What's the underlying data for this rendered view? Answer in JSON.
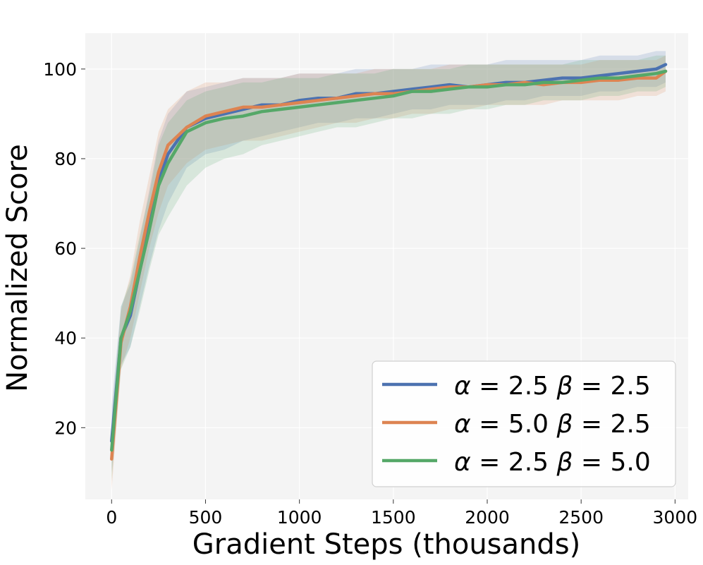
{
  "chart_data": {
    "type": "line",
    "title": "",
    "xlabel": "Gradient Steps (thousands)",
    "ylabel": "Normalized Score",
    "xlim": [
      -140,
      3070
    ],
    "ylim": [
      4,
      108
    ],
    "x_ticks": [
      0,
      500,
      1000,
      1500,
      2000,
      2500,
      3000
    ],
    "y_ticks": [
      20,
      40,
      60,
      80,
      100
    ],
    "grid": true,
    "background": "#f4f4f4",
    "legend_position": "lower-right",
    "series": [
      {
        "name": "α = 2.5   β = 2.5",
        "legend_parts": [
          "α",
          "= 2.5",
          "β",
          "= 2.5"
        ],
        "color": "#4c72b0",
        "x": [
          0,
          50,
          100,
          150,
          200,
          250,
          300,
          400,
          500,
          600,
          700,
          800,
          900,
          1000,
          1100,
          1200,
          1300,
          1400,
          1500,
          1600,
          1700,
          1800,
          1900,
          2000,
          2100,
          2200,
          2300,
          2400,
          2500,
          2600,
          2700,
          2800,
          2900,
          2950
        ],
        "y": [
          17,
          40,
          45,
          55,
          65,
          75,
          81,
          87,
          89,
          90,
          91,
          92,
          92,
          93,
          93.5,
          93.5,
          94.5,
          94.5,
          95,
          95.5,
          96,
          96.5,
          96,
          96.5,
          97,
          97,
          97.5,
          98,
          98,
          98.5,
          99,
          99.5,
          100,
          101
        ],
        "band": [
          [
            10,
            25
          ],
          [
            34,
            47
          ],
          [
            38,
            52
          ],
          [
            47,
            62
          ],
          [
            56,
            73
          ],
          [
            64,
            84
          ],
          [
            70,
            90
          ],
          [
            78,
            95
          ],
          [
            81,
            96
          ],
          [
            82,
            97
          ],
          [
            84,
            98
          ],
          [
            85,
            98
          ],
          [
            86,
            98
          ],
          [
            87,
            99
          ],
          [
            88,
            99
          ],
          [
            88,
            99
          ],
          [
            89,
            100
          ],
          [
            89,
            100
          ],
          [
            90,
            100
          ],
          [
            91,
            100
          ],
          [
            91,
            101
          ],
          [
            92,
            101
          ],
          [
            92,
            101
          ],
          [
            92,
            101
          ],
          [
            93,
            102
          ],
          [
            93,
            102
          ],
          [
            94,
            102
          ],
          [
            94,
            102
          ],
          [
            94,
            102
          ],
          [
            95,
            103
          ],
          [
            95,
            103
          ],
          [
            96,
            103
          ],
          [
            96,
            104
          ],
          [
            97,
            104
          ]
        ]
      },
      {
        "name": "α = 5.0   β = 2.5",
        "legend_parts": [
          "α",
          "= 5.0",
          "β",
          "= 2.5"
        ],
        "color": "#dd8452",
        "x": [
          0,
          50,
          100,
          150,
          200,
          250,
          300,
          400,
          500,
          600,
          700,
          800,
          900,
          1000,
          1100,
          1200,
          1300,
          1400,
          1500,
          1600,
          1700,
          1800,
          1900,
          2000,
          2100,
          2200,
          2300,
          2400,
          2500,
          2600,
          2700,
          2800,
          2900,
          2950
        ],
        "y": [
          13,
          39,
          47,
          58,
          68,
          77,
          83,
          87,
          89.5,
          90.5,
          91.5,
          91.5,
          92,
          92.5,
          93,
          93.5,
          94,
          94.5,
          94.5,
          95,
          95.5,
          96,
          96,
          96.5,
          96.5,
          97,
          96.5,
          97,
          97,
          97.5,
          97.5,
          98,
          98,
          99.5
        ],
        "band": [
          [
            6,
            20
          ],
          [
            33,
            46
          ],
          [
            40,
            54
          ],
          [
            50,
            66
          ],
          [
            60,
            76
          ],
          [
            68,
            86
          ],
          [
            74,
            91
          ],
          [
            79,
            95
          ],
          [
            82,
            97
          ],
          [
            83,
            97
          ],
          [
            84,
            98
          ],
          [
            84,
            98
          ],
          [
            85,
            98
          ],
          [
            86,
            99
          ],
          [
            87,
            99
          ],
          [
            88,
            99
          ],
          [
            88,
            99
          ],
          [
            89,
            100
          ],
          [
            89,
            100
          ],
          [
            90,
            100
          ],
          [
            90,
            100
          ],
          [
            91,
            101
          ],
          [
            91,
            101
          ],
          [
            92,
            101
          ],
          [
            92,
            101
          ],
          [
            92,
            101
          ],
          [
            92,
            101
          ],
          [
            93,
            101
          ],
          [
            93,
            101
          ],
          [
            93,
            102
          ],
          [
            93,
            102
          ],
          [
            94,
            102
          ],
          [
            94,
            102
          ],
          [
            95,
            103
          ]
        ]
      },
      {
        "name": "α = 2.5   β = 5.0",
        "legend_parts": [
          "α",
          "= 2.5",
          "β",
          "= 5.0"
        ],
        "color": "#55a868",
        "x": [
          0,
          50,
          100,
          150,
          200,
          250,
          300,
          400,
          500,
          600,
          700,
          800,
          900,
          1000,
          1100,
          1200,
          1300,
          1400,
          1500,
          1600,
          1700,
          1800,
          1900,
          2000,
          2100,
          2200,
          2300,
          2400,
          2500,
          2600,
          2700,
          2800,
          2900,
          2950
        ],
        "y": [
          15,
          40,
          46,
          55,
          64,
          74,
          79,
          86,
          88,
          89,
          89.5,
          90.5,
          91,
          91.5,
          92,
          92.5,
          93,
          93.5,
          94,
          95,
          95,
          95.5,
          96,
          96,
          96.5,
          96.5,
          97,
          97,
          97.5,
          98,
          98,
          98.5,
          99,
          99.5
        ],
        "band": [
          [
            8,
            22
          ],
          [
            33,
            47
          ],
          [
            38,
            53
          ],
          [
            46,
            63
          ],
          [
            55,
            72
          ],
          [
            63,
            83
          ],
          [
            67,
            88
          ],
          [
            74,
            93
          ],
          [
            78,
            95
          ],
          [
            80,
            96
          ],
          [
            81,
            97
          ],
          [
            83,
            97
          ],
          [
            84,
            98
          ],
          [
            85,
            98
          ],
          [
            86,
            98
          ],
          [
            87,
            99
          ],
          [
            87,
            99
          ],
          [
            88,
            99
          ],
          [
            89,
            100
          ],
          [
            89,
            100
          ],
          [
            90,
            100
          ],
          [
            90,
            100
          ],
          [
            91,
            101
          ],
          [
            91,
            101
          ],
          [
            92,
            101
          ],
          [
            92,
            101
          ],
          [
            93,
            101
          ],
          [
            93,
            101
          ],
          [
            93,
            102
          ],
          [
            94,
            102
          ],
          [
            94,
            102
          ],
          [
            95,
            102
          ],
          [
            95,
            103
          ],
          [
            96,
            103
          ]
        ]
      }
    ]
  }
}
